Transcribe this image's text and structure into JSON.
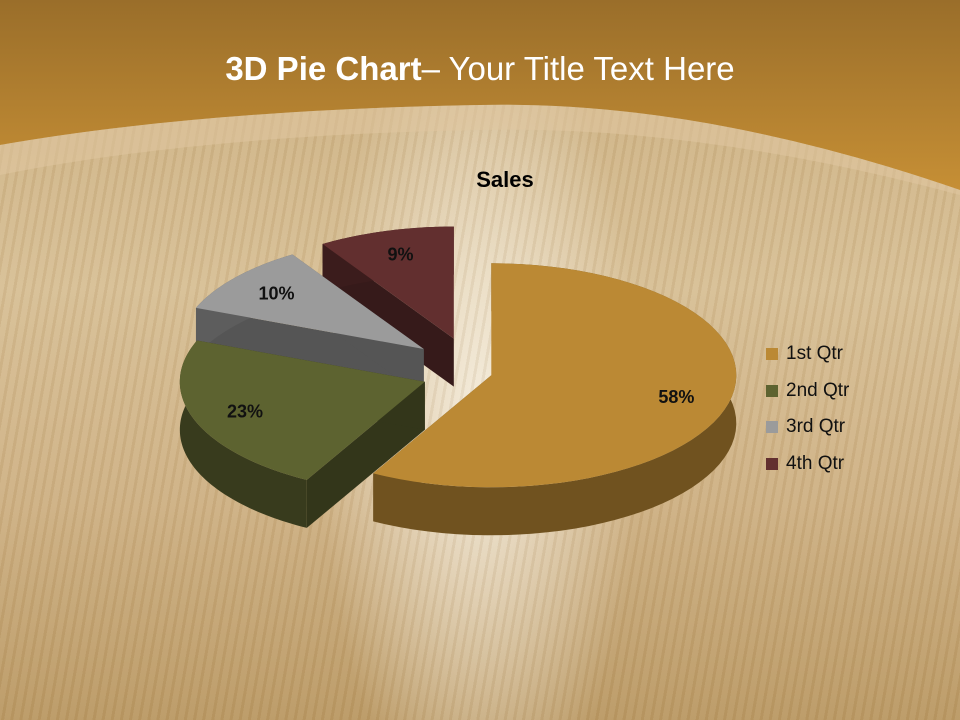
{
  "slide": {
    "title_bold": "3D Pie Chart",
    "title_rest": "– Your Title Text Here"
  },
  "chart_data": {
    "type": "pie",
    "style": "3d-exploded",
    "title": "Sales",
    "categories": [
      "1st Qtr",
      "2nd Qtr",
      "3rd Qtr",
      "4th Qtr"
    ],
    "values": [
      58,
      23,
      10,
      9
    ],
    "data_labels": [
      "58%",
      "23%",
      "10%",
      "9%"
    ],
    "colors": [
      "#bb8934",
      "#5d6330",
      "#9b9b9b",
      "#622f2f"
    ],
    "legend_placement": "right"
  }
}
